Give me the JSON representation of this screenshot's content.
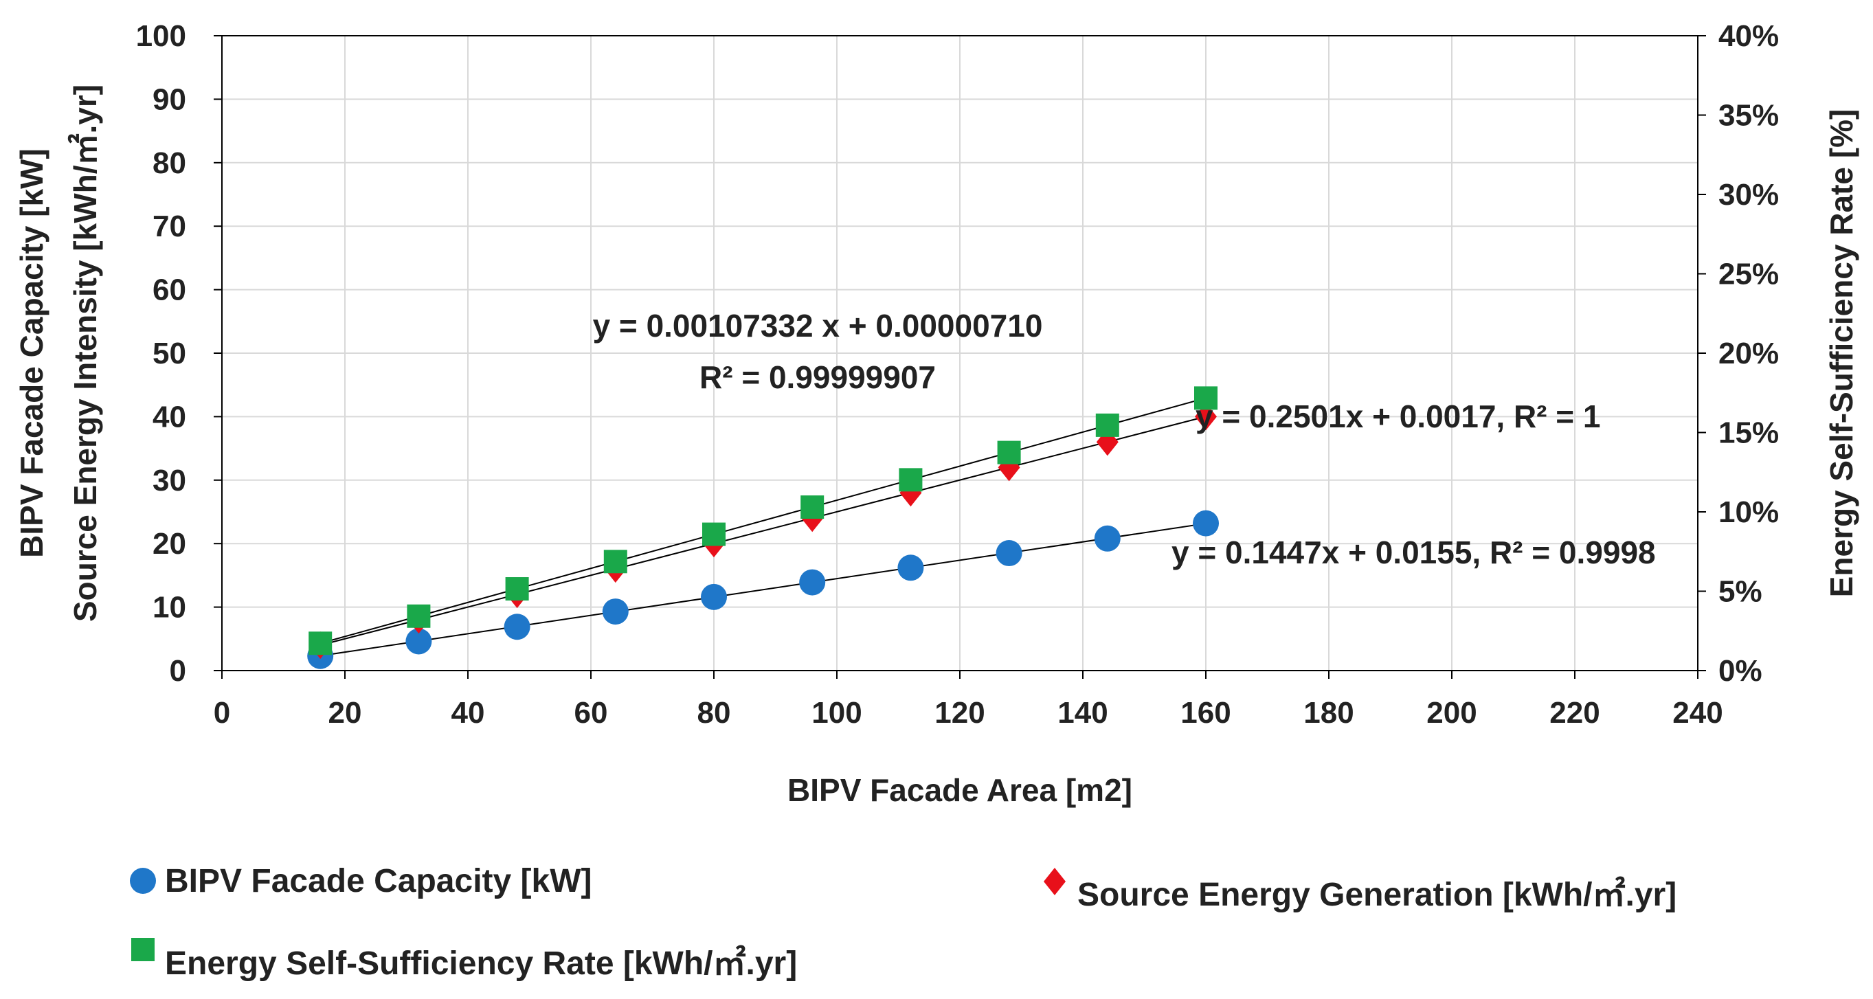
{
  "chart_data": {
    "type": "scatter",
    "xlabel": "BIPV Facade Area [m2]",
    "ylabel_lines": [
      "BIPV Facade Capacity [kW]",
      "Source Energy Intensity [kWh/㎡.yr]"
    ],
    "y2label": "Energy Self-Sufficiency Rate [%]",
    "xlim": [
      0,
      240
    ],
    "ylim": [
      0,
      100
    ],
    "y2lim": [
      0,
      0.4
    ],
    "x_ticks": [
      "0",
      "20",
      "40",
      "60",
      "80",
      "100",
      "120",
      "140",
      "160",
      "180",
      "200",
      "220",
      "240"
    ],
    "y_ticks": [
      "0",
      "10",
      "20",
      "30",
      "40",
      "50",
      "60",
      "70",
      "80",
      "90",
      "100"
    ],
    "y2_ticks": [
      "0%",
      "5%",
      "10%",
      "15%",
      "20%",
      "25%",
      "30%",
      "35%",
      "40%"
    ],
    "grid": true,
    "legend_position": "bottom",
    "series": [
      {
        "name": "BIPV Facade Capacity [kW]",
        "marker": "circle",
        "color": "#1f77c9",
        "axis": "left",
        "x": [
          16,
          32,
          48,
          64,
          80,
          96,
          112,
          128,
          144,
          160
        ],
        "y": [
          2.3,
          4.6,
          6.9,
          9.3,
          11.6,
          13.9,
          16.2,
          18.5,
          20.8,
          23.2
        ],
        "trendline": {
          "equation": "y = 0.1447x + 0.0155, R² = 0.9998",
          "slope": 0.1447,
          "intercept": 0.0155
        }
      },
      {
        "name": "Source Energy Generation [kWh/㎡.yr]",
        "marker": "diamond",
        "color": "#e8101a",
        "axis": "left",
        "x": [
          16,
          32,
          48,
          64,
          80,
          96,
          112,
          128,
          144,
          160
        ],
        "y": [
          4.0,
          8.0,
          12.0,
          16.0,
          20.0,
          24.0,
          28.0,
          32.0,
          36.0,
          40.0
        ],
        "trendline": {
          "equation": "y = 0.2501x + 0.0017, R² = 1",
          "slope": 0.2501,
          "intercept": 0.0017
        }
      },
      {
        "name": "Energy Self-Sufficiency Rate [kWh/㎡.yr]",
        "marker": "square",
        "color": "#1aa84a",
        "axis": "right",
        "x": [
          16,
          32,
          48,
          64,
          80,
          96,
          112,
          128,
          144,
          160
        ],
        "y": [
          0.0172,
          0.0343,
          0.0515,
          0.0687,
          0.0859,
          0.103,
          0.1202,
          0.1374,
          0.1546,
          0.1717
        ],
        "trendline": {
          "equation_lines": [
            "y = 0.00107332 x + 0.00000710",
            "R² = 0.99999907"
          ],
          "slope": 0.00107332,
          "intercept": 7.1e-06
        }
      }
    ]
  }
}
